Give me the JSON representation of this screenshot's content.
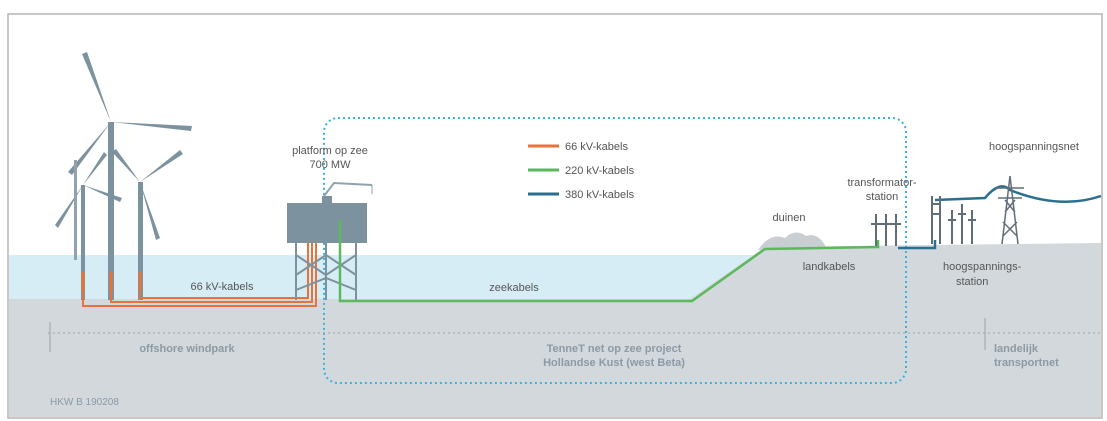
{
  "legend": [
    {
      "label": "66 kV-kabels",
      "color": "#e8733a"
    },
    {
      "label": "220 kV-kabels",
      "color": "#5cb85c"
    },
    {
      "label": "380 kV-kabels",
      "color": "#2a6f8f"
    }
  ],
  "labels": {
    "platform_line1": "platform op zee",
    "platform_line2": "700 MW",
    "cable_66": "66 kV-kabels",
    "zeekabels": "zeekabels",
    "duinen": "duinen",
    "landkabels": "landkabels",
    "transformator_line1": "transformator-",
    "transformator_line2": "station",
    "hoogspanningsnet": "hoogspanningsnet",
    "hoogspanningsstation_line1": "hoogspannings-",
    "hoogspanningsstation_line2": "station"
  },
  "zones": {
    "offshore": "offshore windpark",
    "tennet_line1": "TenneT net op zee project",
    "tennet_line2": "Hollandse Kust (west Beta)",
    "landelijk_line1": "landelijk",
    "landelijk_line2": "transportnet"
  },
  "code": "HKW B 190208",
  "colors": {
    "sea": "#d7edf6",
    "seabed": "#d3d8dc",
    "turbine": "#7d929f",
    "platform": "#7d929f",
    "cable_66": "#e8733a",
    "cable_220": "#5cb85c",
    "cable_380": "#2a6f8f",
    "boundary": "#3bb3dd"
  }
}
